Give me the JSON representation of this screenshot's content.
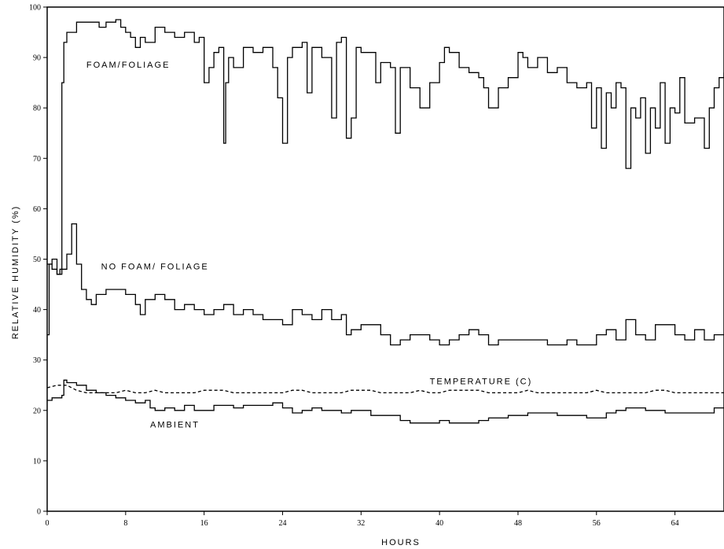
{
  "chart_data": {
    "type": "line",
    "title": "",
    "xlabel": "HOURS",
    "ylabel": "RELATIVE HUMIDITY (%)",
    "xlim": [
      0,
      69
    ],
    "ylim": [
      0,
      100
    ],
    "x_ticks": [
      0,
      8,
      16,
      24,
      32,
      40,
      48,
      56,
      64
    ],
    "y_ticks": [
      0,
      10,
      20,
      30,
      40,
      50,
      60,
      70,
      80,
      90,
      100
    ],
    "grid": false,
    "series": [
      {
        "name": "FOAM/FOLIAGE",
        "style": "solid",
        "points": [
          [
            0,
            49
          ],
          [
            0.5,
            48
          ],
          [
            1,
            47
          ],
          [
            1.3,
            48
          ],
          [
            1.5,
            85
          ],
          [
            1.7,
            93
          ],
          [
            2,
            95
          ],
          [
            3,
            97
          ],
          [
            4,
            97
          ],
          [
            5,
            97
          ],
          [
            5.3,
            96
          ],
          [
            6,
            97
          ],
          [
            7,
            97.5
          ],
          [
            7.5,
            96
          ],
          [
            8,
            95
          ],
          [
            8.5,
            94
          ],
          [
            9,
            92
          ],
          [
            9.5,
            94
          ],
          [
            10,
            93
          ],
          [
            11,
            96
          ],
          [
            12,
            95
          ],
          [
            13,
            94
          ],
          [
            14,
            95
          ],
          [
            15,
            93
          ],
          [
            15.5,
            94
          ],
          [
            16,
            85
          ],
          [
            16.5,
            88
          ],
          [
            17,
            91
          ],
          [
            17.5,
            92
          ],
          [
            18,
            73
          ],
          [
            18.2,
            85
          ],
          [
            18.5,
            90
          ],
          [
            19,
            88
          ],
          [
            20,
            92
          ],
          [
            21,
            91
          ],
          [
            22,
            92
          ],
          [
            23,
            88
          ],
          [
            23.5,
            82
          ],
          [
            24,
            73
          ],
          [
            24.5,
            90
          ],
          [
            25,
            92
          ],
          [
            26,
            93
          ],
          [
            26.5,
            83
          ],
          [
            27,
            92
          ],
          [
            28,
            90
          ],
          [
            29,
            78
          ],
          [
            29.5,
            93
          ],
          [
            30,
            94
          ],
          [
            30.5,
            74
          ],
          [
            31,
            78
          ],
          [
            31.5,
            92
          ],
          [
            32,
            91
          ],
          [
            33,
            91
          ],
          [
            33.5,
            85
          ],
          [
            34,
            89
          ],
          [
            35,
            88
          ],
          [
            35.5,
            75
          ],
          [
            36,
            88
          ],
          [
            37,
            84
          ],
          [
            38,
            80
          ],
          [
            39,
            85
          ],
          [
            40,
            89
          ],
          [
            40.5,
            92
          ],
          [
            41,
            91
          ],
          [
            42,
            88
          ],
          [
            43,
            87
          ],
          [
            44,
            86
          ],
          [
            44.5,
            84
          ],
          [
            45,
            80
          ],
          [
            46,
            84
          ],
          [
            47,
            86
          ],
          [
            48,
            91
          ],
          [
            48.5,
            90
          ],
          [
            49,
            88
          ],
          [
            50,
            90
          ],
          [
            51,
            87
          ],
          [
            52,
            88
          ],
          [
            53,
            85
          ],
          [
            54,
            84
          ],
          [
            55,
            85
          ],
          [
            55.5,
            76
          ],
          [
            56,
            84
          ],
          [
            56.5,
            72
          ],
          [
            57,
            83
          ],
          [
            57.5,
            80
          ],
          [
            58,
            85
          ],
          [
            58.5,
            84
          ],
          [
            59,
            68
          ],
          [
            59.5,
            80
          ],
          [
            60,
            78
          ],
          [
            60.5,
            82
          ],
          [
            61,
            71
          ],
          [
            61.5,
            80
          ],
          [
            62,
            76
          ],
          [
            62.5,
            85
          ],
          [
            63,
            73
          ],
          [
            63.5,
            80
          ],
          [
            64,
            79
          ],
          [
            64.5,
            86
          ],
          [
            65,
            77
          ],
          [
            66,
            78
          ],
          [
            67,
            72
          ],
          [
            67.5,
            80
          ],
          [
            68,
            84
          ],
          [
            68.5,
            86
          ],
          [
            69,
            87
          ]
        ]
      },
      {
        "name": "NO FOAM/ FOLIAGE",
        "style": "solid",
        "points": [
          [
            0,
            35
          ],
          [
            0.2,
            49
          ],
          [
            0.5,
            50
          ],
          [
            1,
            47
          ],
          [
            1.5,
            48
          ],
          [
            2,
            51
          ],
          [
            2.5,
            57
          ],
          [
            3,
            49
          ],
          [
            3.5,
            44
          ],
          [
            4,
            42
          ],
          [
            4.5,
            41
          ],
          [
            5,
            43
          ],
          [
            6,
            44
          ],
          [
            7,
            44
          ],
          [
            8,
            43
          ],
          [
            9,
            41
          ],
          [
            9.5,
            39
          ],
          [
            10,
            42
          ],
          [
            11,
            43
          ],
          [
            12,
            42
          ],
          [
            13,
            40
          ],
          [
            14,
            41
          ],
          [
            15,
            40
          ],
          [
            16,
            39
          ],
          [
            17,
            40
          ],
          [
            18,
            41
          ],
          [
            19,
            39
          ],
          [
            20,
            40
          ],
          [
            21,
            39
          ],
          [
            22,
            38
          ],
          [
            23,
            38
          ],
          [
            24,
            37
          ],
          [
            25,
            40
          ],
          [
            26,
            39
          ],
          [
            27,
            38
          ],
          [
            28,
            40
          ],
          [
            29,
            38
          ],
          [
            30,
            39
          ],
          [
            30.5,
            35
          ],
          [
            31,
            36
          ],
          [
            32,
            37
          ],
          [
            33,
            37
          ],
          [
            34,
            35
          ],
          [
            35,
            33
          ],
          [
            36,
            34
          ],
          [
            37,
            35
          ],
          [
            38,
            35
          ],
          [
            39,
            34
          ],
          [
            40,
            33
          ],
          [
            41,
            34
          ],
          [
            42,
            35
          ],
          [
            43,
            36
          ],
          [
            44,
            35
          ],
          [
            45,
            33
          ],
          [
            46,
            34
          ],
          [
            47,
            34
          ],
          [
            48,
            34
          ],
          [
            49,
            34
          ],
          [
            50,
            34
          ],
          [
            51,
            33
          ],
          [
            52,
            33
          ],
          [
            53,
            34
          ],
          [
            54,
            33
          ],
          [
            55,
            33
          ],
          [
            56,
            35
          ],
          [
            57,
            36
          ],
          [
            58,
            34
          ],
          [
            59,
            38
          ],
          [
            60,
            35
          ],
          [
            61,
            34
          ],
          [
            62,
            37
          ],
          [
            63,
            37
          ],
          [
            64,
            35
          ],
          [
            65,
            34
          ],
          [
            66,
            36
          ],
          [
            67,
            34
          ],
          [
            68,
            35
          ],
          [
            69,
            35
          ]
        ]
      },
      {
        "name": "TEMPERATURE (C)",
        "style": "dashed",
        "points": [
          [
            0,
            24.5
          ],
          [
            1,
            25
          ],
          [
            2,
            25
          ],
          [
            3,
            24
          ],
          [
            4,
            23.5
          ],
          [
            5,
            23.5
          ],
          [
            6,
            23.5
          ],
          [
            7,
            23.5
          ],
          [
            8,
            24
          ],
          [
            9,
            23.5
          ],
          [
            10,
            23.5
          ],
          [
            11,
            24
          ],
          [
            12,
            23.5
          ],
          [
            13,
            23.5
          ],
          [
            14,
            23.5
          ],
          [
            15,
            23.5
          ],
          [
            16,
            24
          ],
          [
            17,
            24
          ],
          [
            18,
            24
          ],
          [
            19,
            23.5
          ],
          [
            20,
            23.5
          ],
          [
            21,
            23.5
          ],
          [
            22,
            23.5
          ],
          [
            23,
            23.5
          ],
          [
            24,
            23.5
          ],
          [
            25,
            24
          ],
          [
            26,
            24
          ],
          [
            27,
            23.5
          ],
          [
            28,
            23.5
          ],
          [
            29,
            23.5
          ],
          [
            30,
            23.5
          ],
          [
            31,
            24
          ],
          [
            32,
            24
          ],
          [
            33,
            24
          ],
          [
            34,
            23.5
          ],
          [
            35,
            23.5
          ],
          [
            36,
            23.5
          ],
          [
            37,
            23.5
          ],
          [
            38,
            24
          ],
          [
            39,
            23.5
          ],
          [
            40,
            23.5
          ],
          [
            41,
            24
          ],
          [
            42,
            24
          ],
          [
            43,
            24
          ],
          [
            44,
            24
          ],
          [
            45,
            23.5
          ],
          [
            46,
            23.5
          ],
          [
            47,
            23.5
          ],
          [
            48,
            23.5
          ],
          [
            49,
            24
          ],
          [
            50,
            23.5
          ],
          [
            51,
            23.5
          ],
          [
            52,
            23.5
          ],
          [
            53,
            23.5
          ],
          [
            54,
            23.5
          ],
          [
            55,
            23.5
          ],
          [
            56,
            24
          ],
          [
            57,
            23.5
          ],
          [
            58,
            23.5
          ],
          [
            59,
            23.5
          ],
          [
            60,
            23.5
          ],
          [
            61,
            23.5
          ],
          [
            62,
            24
          ],
          [
            63,
            24
          ],
          [
            64,
            23.5
          ],
          [
            65,
            23.5
          ],
          [
            66,
            23.5
          ],
          [
            67,
            23.5
          ],
          [
            68,
            23.5
          ],
          [
            69,
            23.5
          ]
        ]
      },
      {
        "name": "AMBIENT",
        "style": "solid",
        "points": [
          [
            0,
            22
          ],
          [
            0.5,
            22.5
          ],
          [
            1,
            22.5
          ],
          [
            1.5,
            23
          ],
          [
            1.7,
            26
          ],
          [
            2,
            25.5
          ],
          [
            3,
            25
          ],
          [
            4,
            24
          ],
          [
            5,
            23.5
          ],
          [
            6,
            23
          ],
          [
            7,
            22.5
          ],
          [
            8,
            22
          ],
          [
            9,
            21.5
          ],
          [
            10,
            22
          ],
          [
            10.5,
            20.5
          ],
          [
            11,
            20
          ],
          [
            12,
            20.5
          ],
          [
            13,
            20
          ],
          [
            14,
            21
          ],
          [
            15,
            20
          ],
          [
            16,
            20
          ],
          [
            17,
            21
          ],
          [
            18,
            21
          ],
          [
            19,
            20.5
          ],
          [
            20,
            21
          ],
          [
            21,
            21
          ],
          [
            22,
            21
          ],
          [
            23,
            21.5
          ],
          [
            24,
            20.5
          ],
          [
            25,
            19.5
          ],
          [
            26,
            20
          ],
          [
            27,
            20.5
          ],
          [
            28,
            20
          ],
          [
            29,
            20
          ],
          [
            30,
            19.5
          ],
          [
            31,
            20
          ],
          [
            32,
            20
          ],
          [
            33,
            19
          ],
          [
            34,
            19
          ],
          [
            35,
            19
          ],
          [
            36,
            18
          ],
          [
            37,
            17.5
          ],
          [
            38,
            17.5
          ],
          [
            39,
            17.5
          ],
          [
            40,
            18
          ],
          [
            41,
            17.5
          ],
          [
            42,
            17.5
          ],
          [
            43,
            17.5
          ],
          [
            44,
            18
          ],
          [
            45,
            18.5
          ],
          [
            46,
            18.5
          ],
          [
            47,
            19
          ],
          [
            48,
            19
          ],
          [
            49,
            19.5
          ],
          [
            50,
            19.5
          ],
          [
            51,
            19.5
          ],
          [
            52,
            19
          ],
          [
            53,
            19
          ],
          [
            54,
            19
          ],
          [
            55,
            18.5
          ],
          [
            56,
            18.5
          ],
          [
            57,
            19.5
          ],
          [
            58,
            20
          ],
          [
            59,
            20.5
          ],
          [
            60,
            20.5
          ],
          [
            61,
            20
          ],
          [
            62,
            20
          ],
          [
            63,
            19.5
          ],
          [
            64,
            19.5
          ],
          [
            65,
            19.5
          ],
          [
            66,
            19.5
          ],
          [
            67,
            19.5
          ],
          [
            68,
            20.5
          ],
          [
            69,
            20.5
          ]
        ]
      }
    ],
    "labels": [
      {
        "text": "FOAM/FOLIAGE",
        "x": 4,
        "y": 88
      },
      {
        "text": "NO FOAM/ FOLIAGE",
        "x": 5.5,
        "y": 48
      },
      {
        "text": "TEMPERATURE (C)",
        "x": 39,
        "y": 25.2
      },
      {
        "text": "AMBIENT",
        "x": 10.5,
        "y": 16.6
      }
    ]
  }
}
